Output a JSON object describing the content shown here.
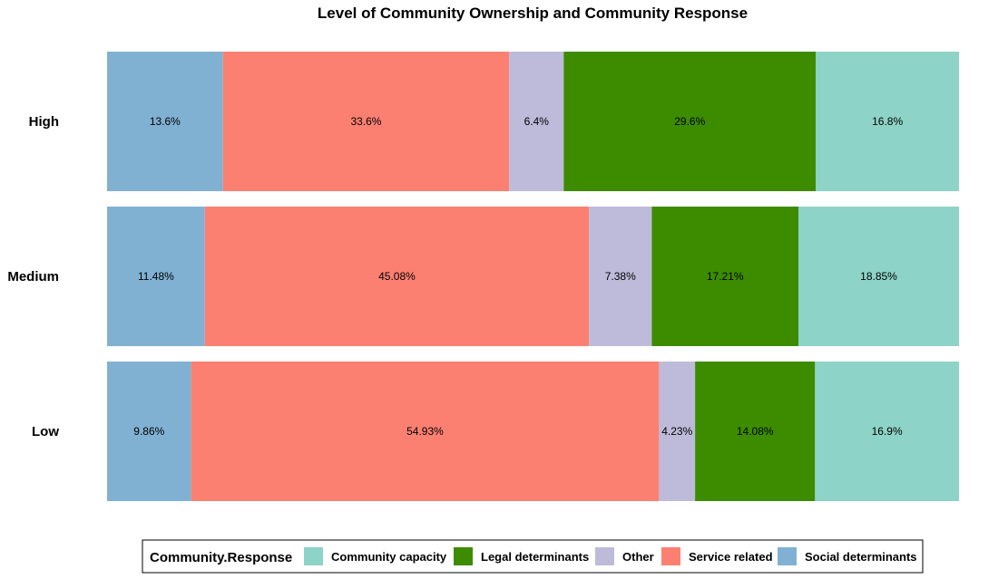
{
  "chart_data": {
    "type": "bar",
    "orientation": "horizontal",
    "stacked": "percent",
    "title": "Level of Community Ownership and Community Response",
    "xlabel": "",
    "ylabel": "",
    "categories": [
      "High",
      "Medium",
      "Low"
    ],
    "series": [
      {
        "name": "Social determinants",
        "color": "#80B1D3",
        "values": [
          13.6,
          11.48,
          9.86
        ],
        "labels": [
          "13.6%",
          "11.48%",
          "9.86%"
        ]
      },
      {
        "name": "Service related",
        "color": "#FB8072",
        "values": [
          33.6,
          45.08,
          54.93
        ],
        "labels": [
          "33.6%",
          "45.08%",
          "54.93%"
        ]
      },
      {
        "name": "Other",
        "color": "#BEBADA",
        "values": [
          6.4,
          7.38,
          4.23
        ],
        "labels": [
          "6.4%",
          "7.38%",
          "4.23%"
        ]
      },
      {
        "name": "Legal determinants",
        "color": "#3D8C00",
        "values": [
          29.6,
          17.21,
          14.08
        ],
        "labels": [
          "29.6%",
          "17.21%",
          "14.08%"
        ]
      },
      {
        "name": "Community capacity",
        "color": "#8DD3C7",
        "values": [
          16.8,
          18.85,
          16.9
        ],
        "labels": [
          "16.8%",
          "18.85%",
          "16.9%"
        ]
      }
    ],
    "legend": {
      "title": "Community.Response",
      "position": "bottom",
      "order": [
        "Community capacity",
        "Legal determinants",
        "Other",
        "Service related",
        "Social determinants"
      ]
    },
    "grid": false
  }
}
